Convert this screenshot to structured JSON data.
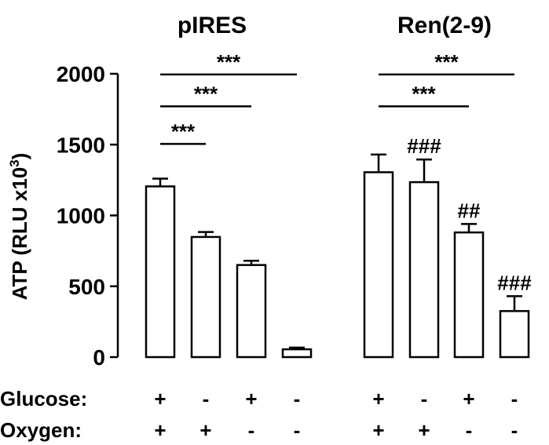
{
  "chart_data": {
    "type": "bar",
    "group_titles": [
      "pIRES",
      "Ren(2-9)"
    ],
    "ylabel": "ATP (RLU x10",
    "ylabel_sup": "3",
    "ylabel_close": ")",
    "ylim": [
      0,
      2000
    ],
    "yticks": [
      0,
      500,
      1000,
      1500,
      2000
    ],
    "bar_color": "#ffffff",
    "edge_color": "#000000",
    "groups": [
      {
        "name": "pIRES",
        "values": [
          1205,
          848,
          650,
          55
        ],
        "errors": [
          55,
          35,
          30,
          12
        ],
        "glucose": [
          "+",
          "-",
          "+",
          "-"
        ],
        "oxygen": [
          "+",
          "+",
          "-",
          "-"
        ],
        "annotations": [
          "",
          "",
          "",
          ""
        ]
      },
      {
        "name": "Ren(2-9)",
        "values": [
          1305,
          1235,
          880,
          325
        ],
        "errors": [
          125,
          160,
          60,
          105
        ],
        "glucose": [
          "+",
          "-",
          "+",
          "-"
        ],
        "oxygen": [
          "+",
          "+",
          "-",
          "-"
        ],
        "annotations": [
          "",
          "###",
          "##",
          "###"
        ]
      }
    ],
    "row_labels": [
      "Glucose:",
      "Oxygen:"
    ],
    "significance": [
      {
        "group": 0,
        "from": 0,
        "to": 1,
        "label": "***",
        "y": 1505
      },
      {
        "group": 0,
        "from": 0,
        "to": 2,
        "label": "***",
        "y": 1770
      },
      {
        "group": 0,
        "from": 0,
        "to": 3,
        "label": "***",
        "y": 1995
      },
      {
        "group": 1,
        "from": 0,
        "to": 2,
        "label": "***",
        "y": 1770
      },
      {
        "group": 1,
        "from": 0,
        "to": 3,
        "label": "***",
        "y": 1995
      }
    ]
  }
}
